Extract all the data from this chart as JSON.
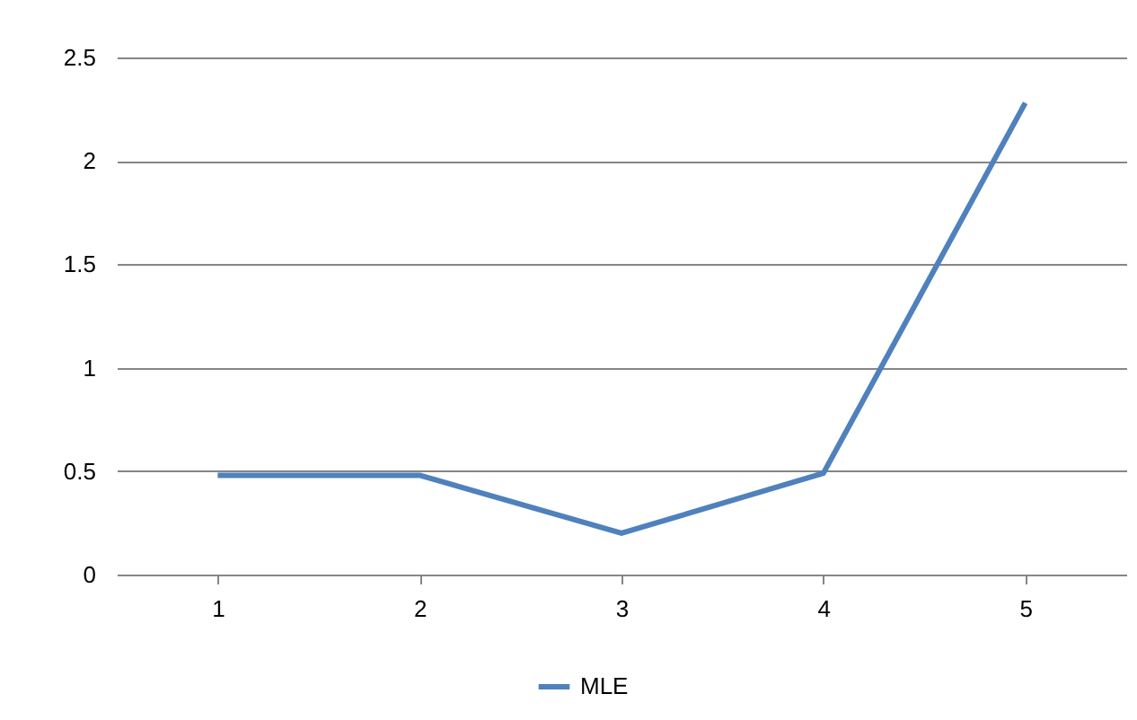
{
  "chart_data": {
    "type": "line",
    "categories": [
      "1",
      "2",
      "3",
      "4",
      "5"
    ],
    "series": [
      {
        "name": "MLE",
        "color": "#4f81bd",
        "values": [
          0.48,
          0.48,
          0.2,
          0.49,
          2.28
        ]
      }
    ],
    "ylim": [
      0,
      2.5
    ],
    "yticks": [
      0,
      0.5,
      1,
      1.5,
      2,
      2.5
    ],
    "grid": "y",
    "legend": "bottom",
    "marker": "none",
    "line_style": "solid"
  }
}
